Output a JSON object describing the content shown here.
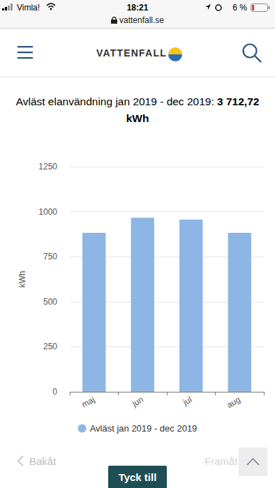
{
  "status_bar": {
    "carrier": "Vimla!",
    "time": "18:21",
    "battery": "6 %"
  },
  "url": "vattenfall.se",
  "header": {
    "logo": "VATTENFALL"
  },
  "heading": {
    "text": "Avläst elanvändning jan 2019 - dec 2019:",
    "total": "3 712,72 kWh"
  },
  "chart_data": {
    "type": "bar",
    "ylabel": "kWh",
    "categories": [
      "maj",
      "jun",
      "jul",
      "aug"
    ],
    "series": [
      {
        "name": "Avläst jan 2019 - dec 2019",
        "color": "#8db6e4",
        "values": [
          882,
          967,
          956,
          882
        ]
      }
    ],
    "ylim": [
      0,
      1250
    ],
    "yticks": [
      0,
      250,
      500,
      750,
      1000,
      1250
    ],
    "grid": true,
    "legend": "bottom"
  },
  "navigation": {
    "back": "Bakåt",
    "forward": "Framåt",
    "feedback": "Tyck till"
  }
}
